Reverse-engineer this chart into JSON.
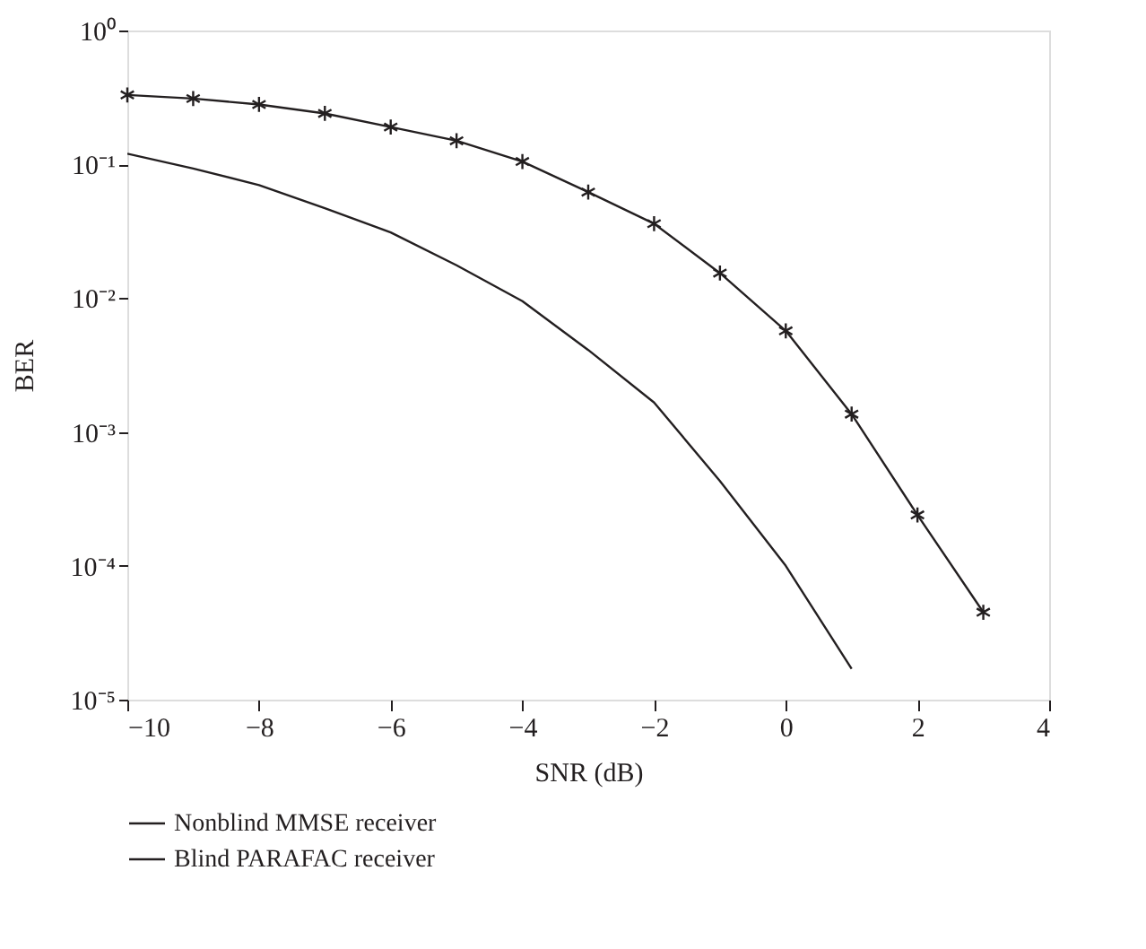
{
  "chart_data": {
    "type": "line",
    "xlabel": "SNR (dB)",
    "ylabel": "BER",
    "log": "y",
    "xlim": [
      -10,
      4
    ],
    "xticks": [
      -10,
      -8,
      -6,
      -4,
      -2,
      0,
      2,
      4
    ],
    "ylim": [
      1e-05,
      1
    ],
    "yticks": [
      {
        "value": 1,
        "label": "10⁰"
      },
      {
        "value": 0.1,
        "label": "10⁻¹"
      },
      {
        "value": 0.01,
        "label": "10⁻²"
      },
      {
        "value": 0.001,
        "label": "10⁻³"
      },
      {
        "value": 0.0001,
        "label": "10⁻⁴"
      },
      {
        "value": 1e-05,
        "label": "10⁻⁵"
      }
    ],
    "grid": false,
    "legend": "bottom",
    "series": [
      {
        "name": "Nonblind MMSE receiver",
        "color": "#231f20",
        "marker": "none",
        "x": [
          -10,
          -9,
          -8,
          -7,
          -6,
          -5,
          -4,
          -3,
          -2,
          -1,
          0,
          1
        ],
        "values": [
          0.12,
          0.093,
          0.07,
          0.047,
          0.031,
          0.0176,
          0.0095,
          0.0041,
          0.00166,
          0.00043,
          0.0001,
          1.7e-05
        ]
      },
      {
        "name": "Blind PARAFAC receiver",
        "color": "#231f20",
        "marker": "cross",
        "x": [
          -10,
          -9,
          -8,
          -7,
          -6,
          -5,
          -4,
          -3,
          -2,
          -1,
          0,
          1,
          2,
          3
        ],
        "values": [
          0.33,
          0.31,
          0.28,
          0.24,
          0.19,
          0.15,
          0.105,
          0.062,
          0.036,
          0.0154,
          0.0057,
          0.00136,
          0.00024,
          4.5e-05
        ]
      }
    ]
  }
}
